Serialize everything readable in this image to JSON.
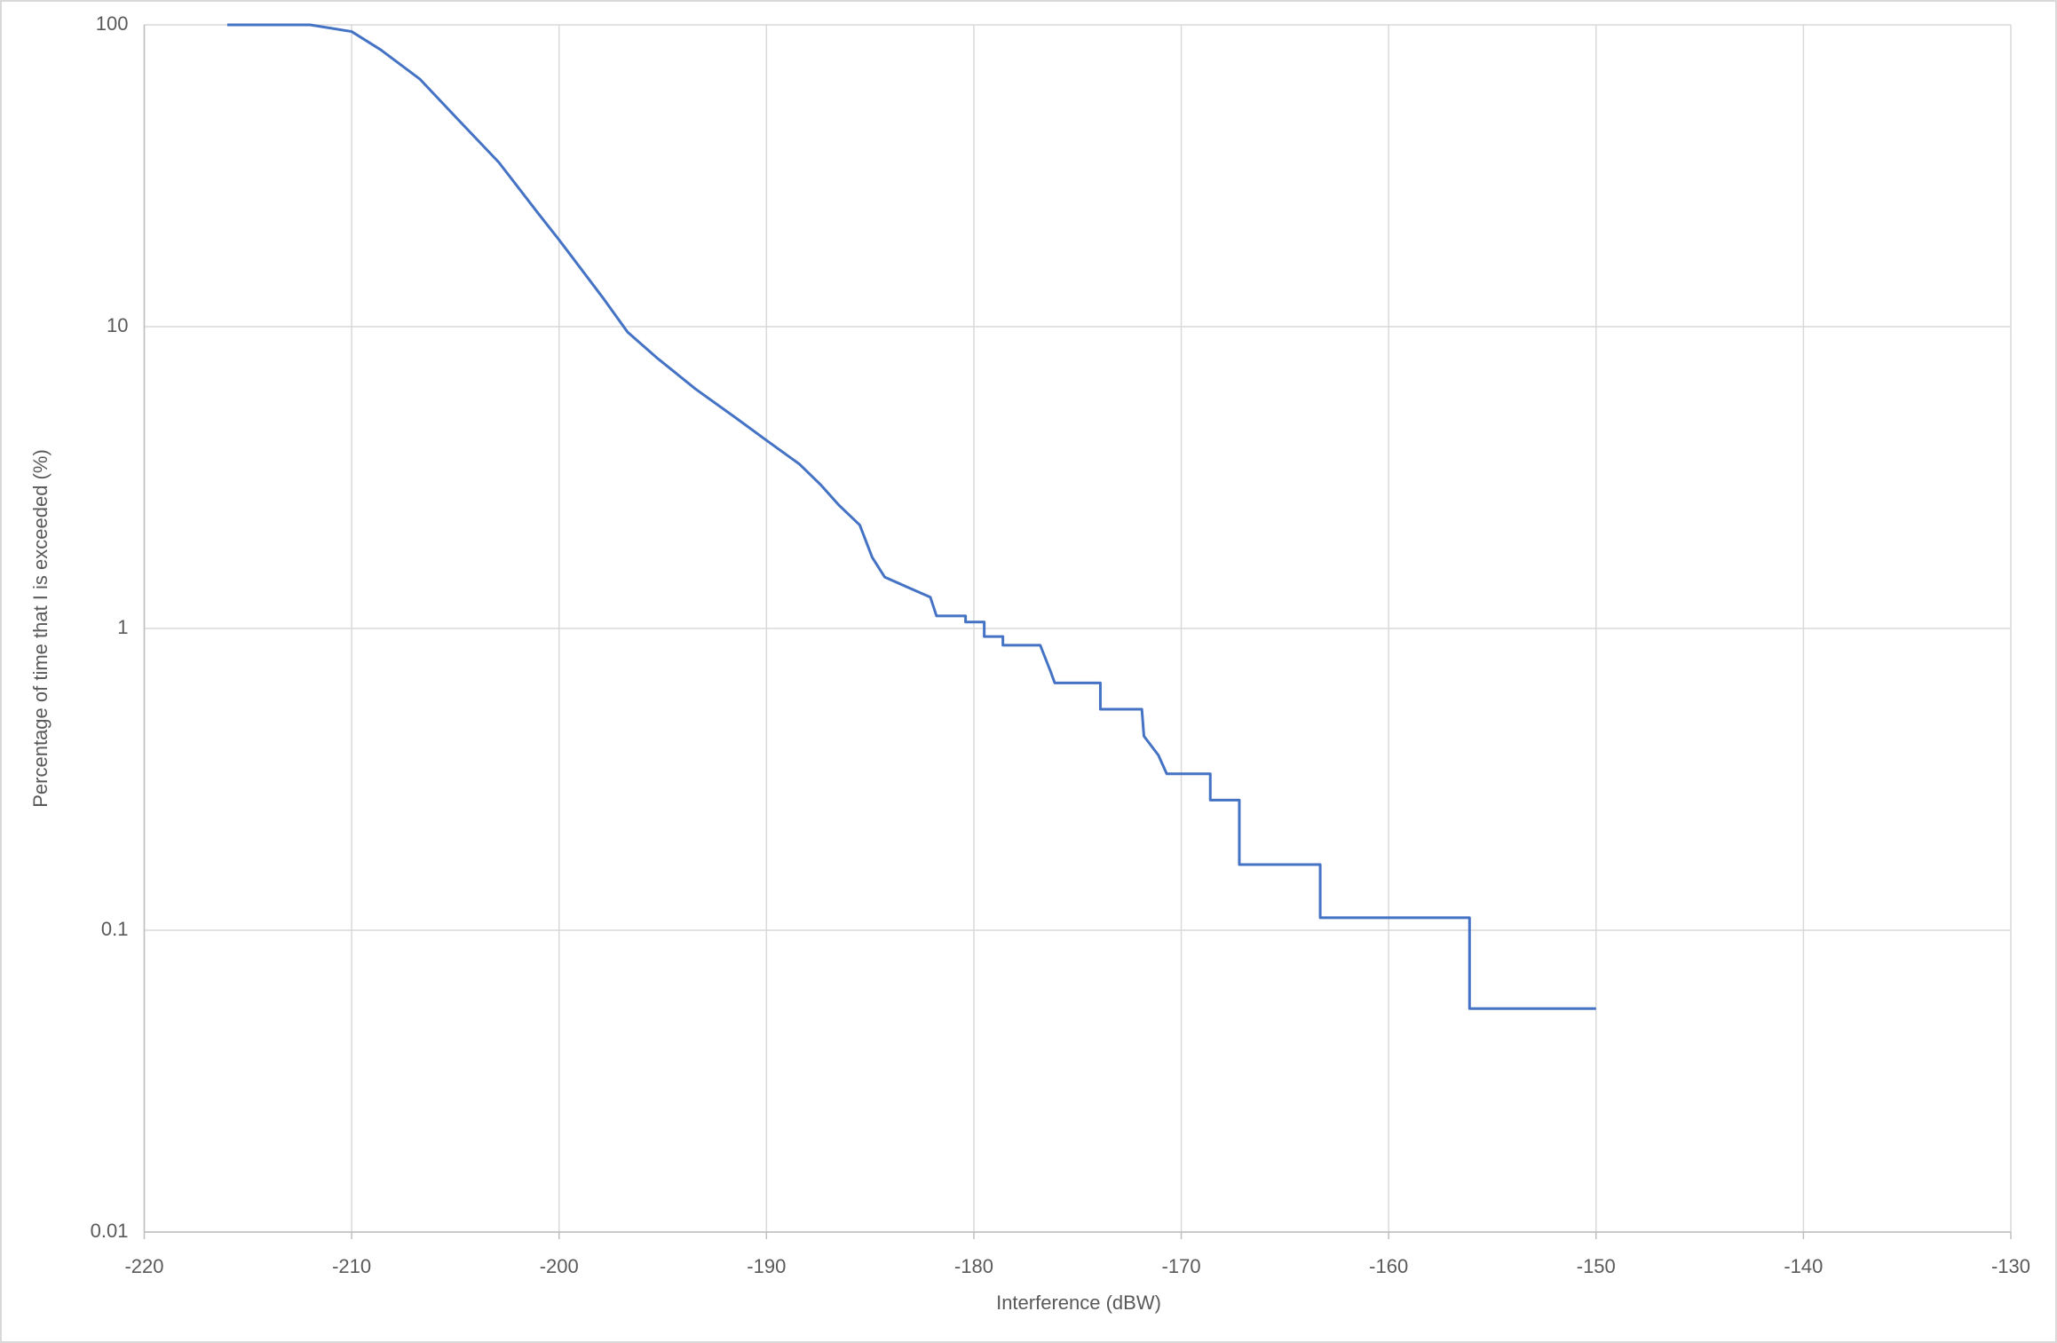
{
  "chart_data": {
    "type": "line",
    "x_label": "Interference (dBW)",
    "y_label": "Percentage of time that I is exceeded (%)",
    "x": [
      -216,
      -212,
      -210,
      -208.6,
      -206.7,
      -204.8,
      -202.9,
      -201.0,
      -200,
      -197.9,
      -196.7,
      -195.3,
      -193.4,
      -191.5,
      -190,
      -188.4,
      -187.4,
      -186.5,
      -185.5,
      -184.9,
      -184.3,
      -183.3,
      -182.1,
      -181.8,
      -180.4,
      -180.4,
      -179.5,
      -179.5,
      -178.6,
      -178.6,
      -176.8,
      -176.3,
      -176.1,
      -173.9,
      -173.9,
      -171.9,
      -171.8,
      -171.1,
      -170.7,
      -168.6,
      -168.6,
      -167.2,
      -167.2,
      -163.3,
      -163.3,
      -156.1,
      -156.1,
      -150
    ],
    "series": [
      {
        "name": "Interference",
        "color": "#4472c4",
        "values": [
          100,
          100,
          95,
          82.7,
          66,
          48,
          35,
          23.7,
          19.4,
          12.5,
          9.6,
          7.9,
          6.2,
          5.0,
          4.2,
          3.5,
          3.0,
          2.56,
          2.2,
          1.72,
          1.48,
          1.38,
          1.27,
          1.1,
          1.1,
          1.05,
          1.05,
          0.94,
          0.94,
          0.88,
          0.88,
          0.72,
          0.66,
          0.66,
          0.54,
          0.54,
          0.44,
          0.38,
          0.33,
          0.33,
          0.27,
          0.27,
          0.165,
          0.165,
          0.11,
          0.11,
          0.055,
          0.055
        ]
      }
    ],
    "xlim": [
      -220,
      -130
    ],
    "xticks": [
      -220,
      -210,
      -200,
      -190,
      -180,
      -170,
      -160,
      -150,
      -140,
      -130
    ],
    "ylim": [
      0.01,
      100
    ],
    "yticks": [
      0.01,
      0.1,
      1,
      10,
      100
    ],
    "y_scale": "log",
    "grid": true
  }
}
